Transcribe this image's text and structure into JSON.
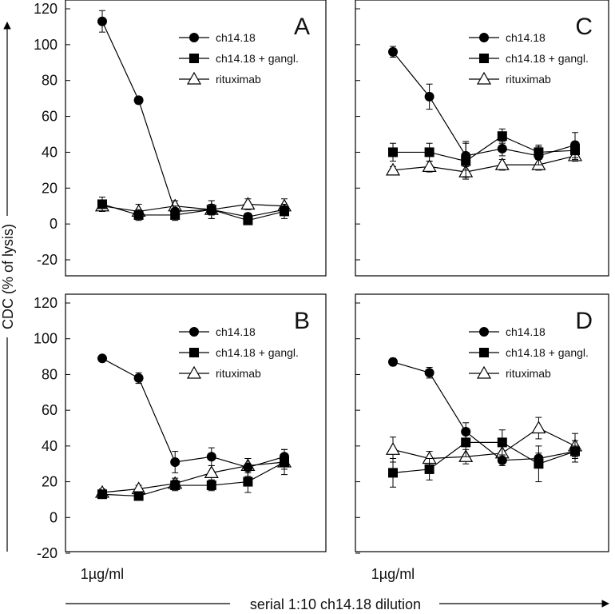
{
  "chart_data": {
    "type": "line",
    "ylabel": "CDC (% of lysis)",
    "xlabel": "serial 1:10 ch14.18 dilution",
    "ylim": [
      -20,
      120
    ],
    "yticks": [
      -20,
      0,
      20,
      40,
      60,
      80,
      100,
      120
    ],
    "x": [
      1,
      2,
      3,
      4,
      5,
      6
    ],
    "x_first_label": "1µg/ml",
    "legend": [
      "ch14.18",
      "ch14.18 + gangl.",
      "rituximab"
    ],
    "panels": [
      {
        "label": "A",
        "series": [
          {
            "name": "ch14.18",
            "marker": "circle",
            "values": [
              113,
              69,
              7,
              8,
              4,
              8
            ],
            "errors": [
              6,
              2,
              3,
              3,
              2,
              3
            ]
          },
          {
            "name": "ch14.18 + gangl.",
            "marker": "square",
            "values": [
              11,
              5,
              5,
              8,
              2,
              7
            ],
            "errors": [
              4,
              3,
              3,
              5,
              2,
              4
            ]
          },
          {
            "name": "rituximab",
            "marker": "triangle",
            "values": [
              10,
              7,
              10,
              8,
              11,
              10
            ],
            "errors": [
              3,
              4,
              3,
              5,
              3,
              4
            ]
          }
        ]
      },
      {
        "label": "C",
        "series": [
          {
            "name": "ch14.18",
            "marker": "circle",
            "values": [
              96,
              71,
              38,
              42,
              38,
              44
            ],
            "errors": [
              3,
              7,
              8,
              4,
              5,
              7
            ]
          },
          {
            "name": "ch14.18 + gangl.",
            "marker": "square",
            "values": [
              40,
              40,
              35,
              49,
              40,
              41
            ],
            "errors": [
              5,
              5,
              10,
              4,
              4,
              5
            ]
          },
          {
            "name": "rituximab",
            "marker": "triangle",
            "values": [
              30,
              32,
              29,
              33,
              33,
              38
            ],
            "errors": [
              2,
              3,
              3,
              3,
              3,
              3
            ]
          }
        ]
      },
      {
        "label": "B",
        "series": [
          {
            "name": "ch14.18",
            "marker": "circle",
            "values": [
              89,
              78,
              31,
              34,
              28,
              34
            ],
            "errors": [
              1,
              3,
              6,
              5,
              5,
              4
            ]
          },
          {
            "name": "ch14.18 + gangl.",
            "marker": "square",
            "values": [
              13,
              12,
              18,
              18,
              20,
              31
            ],
            "errors": [
              2,
              2,
              3,
              3,
              6,
              7
            ]
          },
          {
            "name": "rituximab",
            "marker": "triangle",
            "values": [
              14,
              16,
              19,
              25,
              29,
              31
            ],
            "errors": [
              2,
              2,
              3,
              4,
              4,
              4
            ]
          }
        ]
      },
      {
        "label": "D",
        "series": [
          {
            "name": "ch14.18",
            "marker": "circle",
            "values": [
              87,
              81,
              48,
              32,
              33,
              37
            ],
            "errors": [
              2,
              3,
              5,
              3,
              3,
              3
            ]
          },
          {
            "name": "ch14.18 + gangl.",
            "marker": "square",
            "values": [
              25,
              27,
              42,
              42,
              30,
              37
            ],
            "errors": [
              8,
              6,
              8,
              7,
              10,
              6
            ]
          },
          {
            "name": "rituximab",
            "marker": "triangle",
            "values": [
              38,
              33,
              34,
              36,
              50,
              40
            ],
            "errors": [
              7,
              4,
              4,
              4,
              6,
              7
            ]
          }
        ]
      }
    ]
  }
}
